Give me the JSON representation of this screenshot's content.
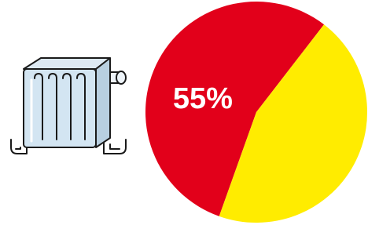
{
  "chart_data": {
    "type": "pie",
    "values": [
      55,
      45
    ],
    "value_labels": [
      "55%",
      null
    ],
    "colors": [
      "#e2001a",
      "#ffec00"
    ]
  }
}
